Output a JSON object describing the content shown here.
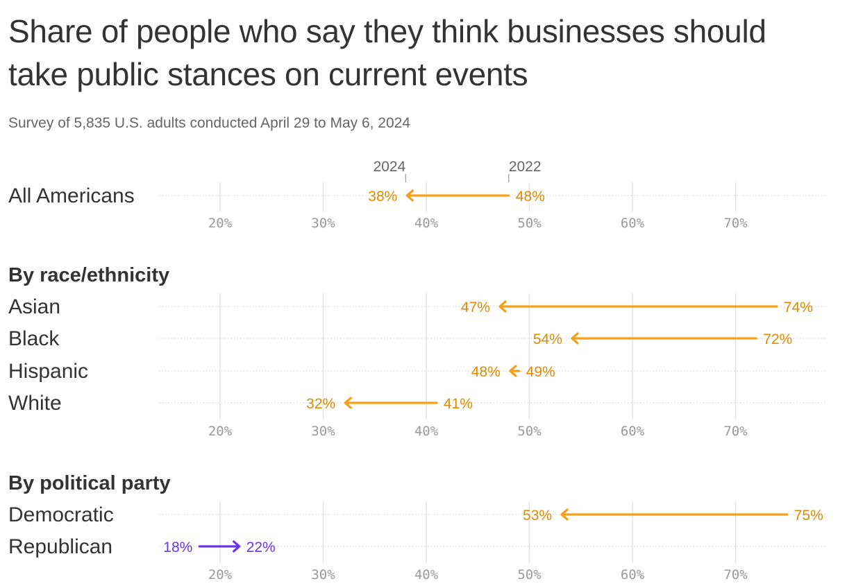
{
  "header": {
    "title": "Share of people who say they think businesses should take public stances on current events",
    "subtitle": "Survey of 5,835 U.S. adults conducted April 29 to May 6, 2024"
  },
  "colors": {
    "decrease": "#f6a01a",
    "decrease_text": "#e08a00",
    "increase": "#6a35f0",
    "gridline": "#e3e3e3",
    "rowline": "#cccccc",
    "text": "#333333"
  },
  "chart_data": {
    "type": "arrow",
    "year_labels": {
      "from": "2022",
      "to": "2024"
    },
    "x_ticks": [
      "20%",
      "30%",
      "40%",
      "50%",
      "60%",
      "70%"
    ],
    "x_tick_values": [
      20,
      30,
      40,
      50,
      60,
      70
    ],
    "xlim": [
      14,
      79
    ],
    "value_suffix": "%",
    "groups": [
      {
        "label": "",
        "rows": [
          {
            "label": "All Americans",
            "from": 48,
            "to": 38
          }
        ]
      },
      {
        "label": "By race/ethnicity",
        "rows": [
          {
            "label": "Asian",
            "from": 74,
            "to": 47
          },
          {
            "label": "Black",
            "from": 72,
            "to": 54
          },
          {
            "label": "Hispanic",
            "from": 49,
            "to": 48
          },
          {
            "label": "White",
            "from": 41,
            "to": 32
          }
        ]
      },
      {
        "label": "By political party",
        "rows": [
          {
            "label": "Democratic",
            "from": 75,
            "to": 53
          },
          {
            "label": "Republican",
            "from": 18,
            "to": 22
          }
        ]
      }
    ]
  }
}
